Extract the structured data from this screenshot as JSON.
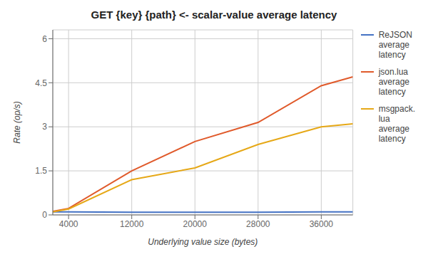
{
  "chart_data": {
    "type": "line",
    "title": "GET {key} {path} <- scalar-value average latency",
    "xlabel": "Underlying value size (bytes)",
    "ylabel": "Rate (op/s)",
    "x": [
      2000,
      4000,
      12000,
      20000,
      28000,
      36000,
      40000
    ],
    "xlim": [
      2000,
      40000
    ],
    "xticks": [
      4000,
      12000,
      20000,
      28000,
      36000
    ],
    "ylim": [
      0,
      6.3
    ],
    "yticks": [
      0,
      1.5,
      3,
      4.5,
      6
    ],
    "grid": true,
    "legend": "right",
    "series": [
      {
        "name": "ReJSON\naverage\nlatency",
        "color": "#4472C4",
        "values": [
          0.1,
          0.1,
          0.09,
          0.09,
          0.09,
          0.1,
          0.1
        ]
      },
      {
        "name": "json.lua\naverage\nlatency",
        "color": "#E05A2B",
        "values": [
          0.12,
          0.22,
          1.5,
          2.5,
          3.15,
          4.4,
          4.7
        ]
      },
      {
        "name": "msgpack.\nlua\naverage\nlatency",
        "color": "#E6A817",
        "values": [
          0.1,
          0.2,
          1.2,
          1.6,
          2.4,
          3.0,
          3.1
        ]
      }
    ]
  }
}
